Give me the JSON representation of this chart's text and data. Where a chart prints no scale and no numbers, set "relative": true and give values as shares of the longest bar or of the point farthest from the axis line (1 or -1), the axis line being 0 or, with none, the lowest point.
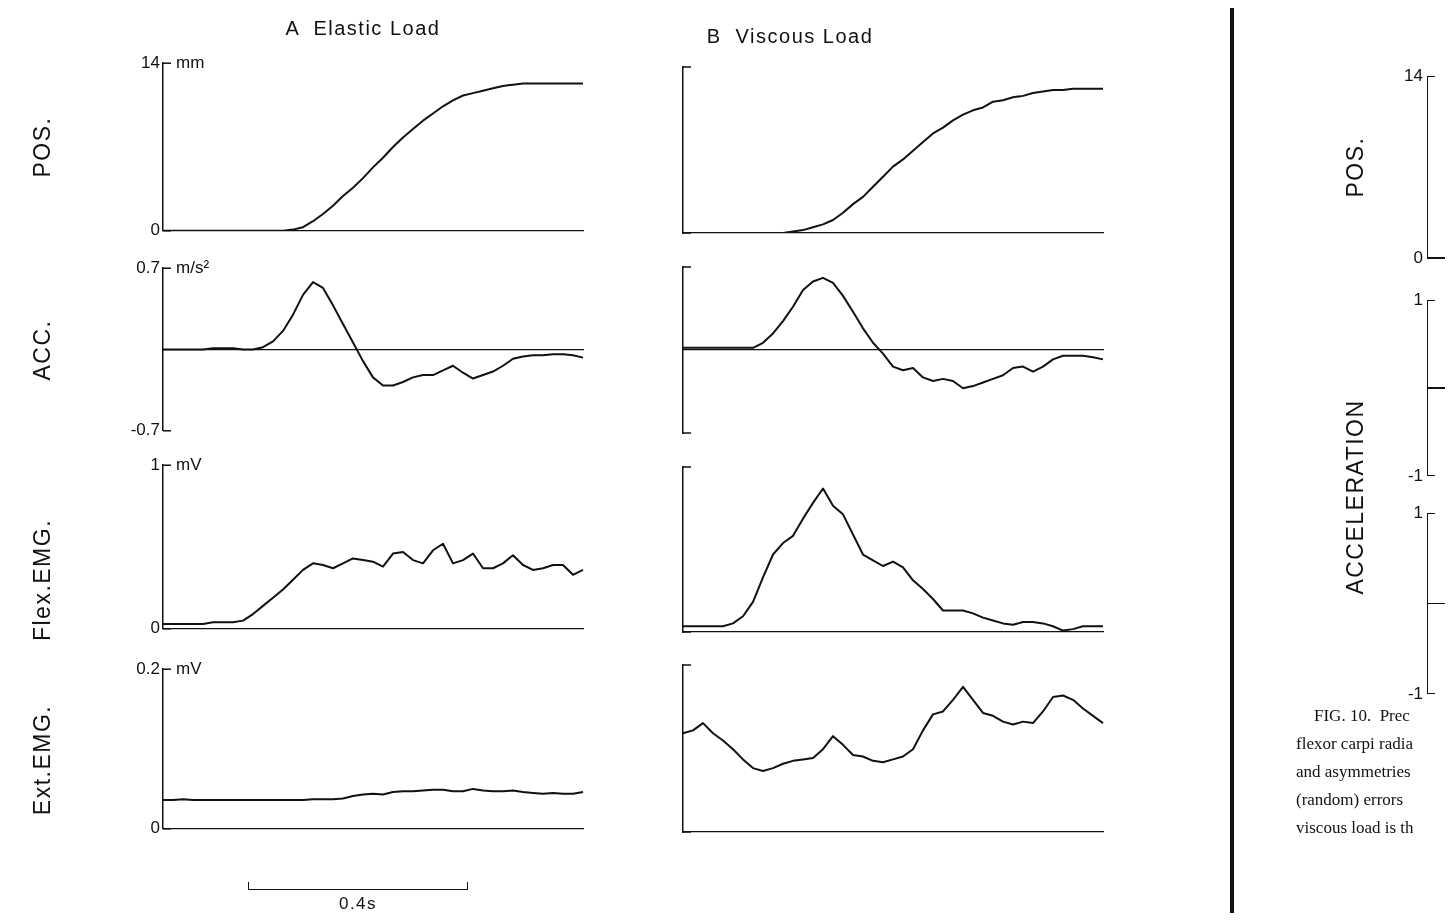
{
  "chart_data": [
    {
      "type": "line",
      "title": "A  Elastic Load",
      "ylabel": "POS.",
      "annotations": [
        "mm"
      ],
      "color": "#111111",
      "ylim": [
        0,
        14
      ],
      "yticks": [
        0,
        14
      ],
      "tick_labels": "y",
      "categories": [
        null,
        null,
        null,
        null,
        null,
        null,
        null,
        null,
        null,
        null,
        null,
        null,
        null,
        null,
        null,
        null,
        null,
        null,
        null,
        null,
        null,
        null,
        null,
        null,
        null,
        null,
        null,
        null,
        null,
        null,
        null,
        null,
        null,
        null,
        null,
        null,
        null,
        null,
        null,
        null,
        null,
        null,
        null
      ],
      "values": [
        0,
        0,
        0,
        0,
        0,
        0,
        0,
        0,
        0,
        0,
        0,
        0,
        0,
        0.1,
        0.3,
        0.8,
        1.4,
        2.1,
        2.9,
        3.6,
        4.4,
        5.3,
        6.1,
        7.0,
        7.8,
        8.5,
        9.2,
        9.8,
        10.4,
        10.9,
        11.3,
        11.5,
        11.7,
        11.9,
        12.1,
        12.2,
        12.3,
        12.3,
        12.3,
        12.3,
        12.3,
        12.3,
        12.3
      ]
    },
    {
      "type": "line",
      "ylabel": "ACC.",
      "annotations": [
        "m/s²"
      ],
      "color": "#111111",
      "ylim": [
        -0.7,
        0.7
      ],
      "yticks": [
        -0.7,
        0.7
      ],
      "tick_labels": "y",
      "categories": [
        null,
        null,
        null,
        null,
        null,
        null,
        null,
        null,
        null,
        null,
        null,
        null,
        null,
        null,
        null,
        null,
        null,
        null,
        null,
        null,
        null,
        null,
        null,
        null,
        null,
        null,
        null,
        null,
        null,
        null,
        null,
        null,
        null,
        null,
        null,
        null,
        null,
        null,
        null,
        null,
        null,
        null,
        null
      ],
      "values": [
        0,
        0,
        0,
        0,
        0,
        0.01,
        0.01,
        0.01,
        0,
        0,
        0.02,
        0.07,
        0.16,
        0.3,
        0.47,
        0.58,
        0.53,
        0.38,
        0.22,
        0.06,
        -0.1,
        -0.24,
        -0.31,
        -0.31,
        -0.28,
        -0.24,
        -0.22,
        -0.22,
        -0.18,
        -0.14,
        -0.2,
        -0.25,
        -0.22,
        -0.19,
        -0.14,
        -0.08,
        -0.06,
        -0.05,
        -0.05,
        -0.04,
        -0.04,
        -0.05,
        -0.07
      ]
    },
    {
      "type": "line",
      "ylabel": "Flex.EMG.",
      "annotations": [
        "mV"
      ],
      "color": "#111111",
      "ylim": [
        0,
        1
      ],
      "yticks": [
        0,
        1
      ],
      "tick_labels": "y",
      "categories": [
        null,
        null,
        null,
        null,
        null,
        null,
        null,
        null,
        null,
        null,
        null,
        null,
        null,
        null,
        null,
        null,
        null,
        null,
        null,
        null,
        null,
        null,
        null,
        null,
        null,
        null,
        null,
        null,
        null,
        null,
        null,
        null,
        null,
        null,
        null,
        null,
        null,
        null,
        null,
        null,
        null,
        null,
        null
      ],
      "values": [
        0.03,
        0.03,
        0.03,
        0.03,
        0.03,
        0.04,
        0.04,
        0.04,
        0.05,
        0.09,
        0.14,
        0.19,
        0.24,
        0.3,
        0.36,
        0.4,
        0.39,
        0.37,
        0.4,
        0.43,
        0.42,
        0.41,
        0.38,
        0.46,
        0.47,
        0.42,
        0.4,
        0.48,
        0.52,
        0.4,
        0.42,
        0.46,
        0.37,
        0.37,
        0.4,
        0.45,
        0.39,
        0.36,
        0.37,
        0.39,
        0.39,
        0.33,
        0.36
      ]
    },
    {
      "type": "line",
      "ylabel": "Ext.EMG.",
      "annotations": [
        "mV",
        "0.4s"
      ],
      "color": "#111111",
      "ylim": [
        0,
        0.2
      ],
      "yticks": [
        0,
        0.2
      ],
      "tick_labels": "y",
      "categories": [
        null,
        null,
        null,
        null,
        null,
        null,
        null,
        null,
        null,
        null,
        null,
        null,
        null,
        null,
        null,
        null,
        null,
        null,
        null,
        null,
        null,
        null,
        null,
        null,
        null,
        null,
        null,
        null,
        null,
        null,
        null,
        null,
        null,
        null,
        null,
        null,
        null,
        null,
        null,
        null,
        null,
        null,
        null
      ],
      "values": [
        0.036,
        0.036,
        0.037,
        0.036,
        0.036,
        0.036,
        0.036,
        0.036,
        0.036,
        0.036,
        0.036,
        0.036,
        0.036,
        0.036,
        0.036,
        0.037,
        0.037,
        0.037,
        0.038,
        0.041,
        0.043,
        0.044,
        0.043,
        0.046,
        0.047,
        0.047,
        0.048,
        0.049,
        0.049,
        0.047,
        0.047,
        0.05,
        0.048,
        0.047,
        0.047,
        0.048,
        0.046,
        0.045,
        0.044,
        0.045,
        0.044,
        0.044,
        0.046
      ]
    },
    {
      "type": "line",
      "title": "B  Viscous Load",
      "color": "#111111",
      "relative": true,
      "tick_labels": false,
      "categories": [
        null,
        null,
        null,
        null,
        null,
        null,
        null,
        null,
        null,
        null,
        null,
        null,
        null,
        null,
        null,
        null,
        null,
        null,
        null,
        null,
        null,
        null,
        null,
        null,
        null,
        null,
        null,
        null,
        null,
        null,
        null,
        null,
        null,
        null,
        null,
        null,
        null,
        null,
        null,
        null,
        null,
        null,
        null
      ],
      "values": [
        0,
        0,
        0,
        0,
        0,
        0,
        0,
        0,
        0,
        0,
        0,
        0.01,
        0.02,
        0.04,
        0.06,
        0.09,
        0.14,
        0.2,
        0.25,
        0.32,
        0.39,
        0.46,
        0.51,
        0.57,
        0.63,
        0.69,
        0.73,
        0.78,
        0.82,
        0.85,
        0.87,
        0.91,
        0.92,
        0.94,
        0.95,
        0.97,
        0.98,
        0.99,
        0.99,
        1,
        1,
        1,
        1
      ]
    },
    {
      "type": "line",
      "color": "#111111",
      "relative": true,
      "tick_labels": false,
      "categories": [
        null,
        null,
        null,
        null,
        null,
        null,
        null,
        null,
        null,
        null,
        null,
        null,
        null,
        null,
        null,
        null,
        null,
        null,
        null,
        null,
        null,
        null,
        null,
        null,
        null,
        null,
        null,
        null,
        null,
        null,
        null,
        null,
        null,
        null,
        null,
        null,
        null,
        null,
        null,
        null,
        null,
        null,
        null
      ],
      "values": [
        0.03,
        0.03,
        0.03,
        0.03,
        0.03,
        0.03,
        0.03,
        0.03,
        0.1,
        0.23,
        0.4,
        0.6,
        0.83,
        0.95,
        1,
        0.93,
        0.75,
        0.53,
        0.3,
        0.1,
        -0.05,
        -0.23,
        -0.28,
        -0.25,
        -0.38,
        -0.43,
        -0.4,
        -0.43,
        -0.53,
        -0.5,
        -0.45,
        -0.4,
        -0.35,
        -0.25,
        -0.23,
        -0.3,
        -0.23,
        -0.13,
        -0.08,
        -0.08,
        -0.08,
        -0.1,
        -0.13
      ]
    },
    {
      "type": "line",
      "color": "#111111",
      "relative": true,
      "tick_labels": false,
      "categories": [
        null,
        null,
        null,
        null,
        null,
        null,
        null,
        null,
        null,
        null,
        null,
        null,
        null,
        null,
        null,
        null,
        null,
        null,
        null,
        null,
        null,
        null,
        null,
        null,
        null,
        null,
        null,
        null,
        null,
        null,
        null,
        null,
        null,
        null,
        null,
        null,
        null,
        null,
        null,
        null,
        null,
        null,
        null
      ],
      "values": [
        0.04,
        0.04,
        0.04,
        0.04,
        0.04,
        0.06,
        0.11,
        0.21,
        0.38,
        0.54,
        0.62,
        0.67,
        0.79,
        0.9,
        1,
        0.88,
        0.82,
        0.68,
        0.54,
        0.5,
        0.46,
        0.49,
        0.45,
        0.36,
        0.3,
        0.23,
        0.15,
        0.15,
        0.15,
        0.13,
        0.1,
        0.08,
        0.06,
        0.05,
        0.07,
        0.07,
        0.06,
        0.04,
        0.01,
        0.02,
        0.04,
        0.04,
        0.04
      ]
    },
    {
      "type": "line",
      "color": "#111111",
      "relative": true,
      "tick_labels": false,
      "categories": [
        null,
        null,
        null,
        null,
        null,
        null,
        null,
        null,
        null,
        null,
        null,
        null,
        null,
        null,
        null,
        null,
        null,
        null,
        null,
        null,
        null,
        null,
        null,
        null,
        null,
        null,
        null,
        null,
        null,
        null,
        null,
        null,
        null,
        null,
        null,
        null,
        null,
        null,
        null,
        null,
        null,
        null,
        null
      ],
      "values": [
        0.68,
        0.7,
        0.75,
        0.68,
        0.63,
        0.57,
        0.5,
        0.44,
        0.42,
        0.44,
        0.47,
        0.49,
        0.5,
        0.51,
        0.57,
        0.66,
        0.6,
        0.53,
        0.52,
        0.49,
        0.48,
        0.5,
        0.52,
        0.57,
        0.7,
        0.81,
        0.83,
        0.91,
        1,
        0.91,
        0.82,
        0.8,
        0.76,
        0.74,
        0.76,
        0.75,
        0.83,
        0.93,
        0.94,
        0.91,
        0.85,
        0.8,
        0.75
      ]
    },
    {
      "type": "other",
      "ylabel": "POS.",
      "annotations": [
        "14",
        "0"
      ]
    },
    {
      "type": "other",
      "ylabel": "ACCELERATION",
      "annotations": [
        "1",
        "-1"
      ]
    },
    {
      "type": "other",
      "annotations": [
        "1",
        "-1"
      ]
    },
    {
      "type": "other",
      "annotations": [
        "FIG. 10.  Prec",
        "flexor carpi radia",
        "and asymmetries",
        "(random) errors",
        "viscous load is th"
      ]
    }
  ]
}
